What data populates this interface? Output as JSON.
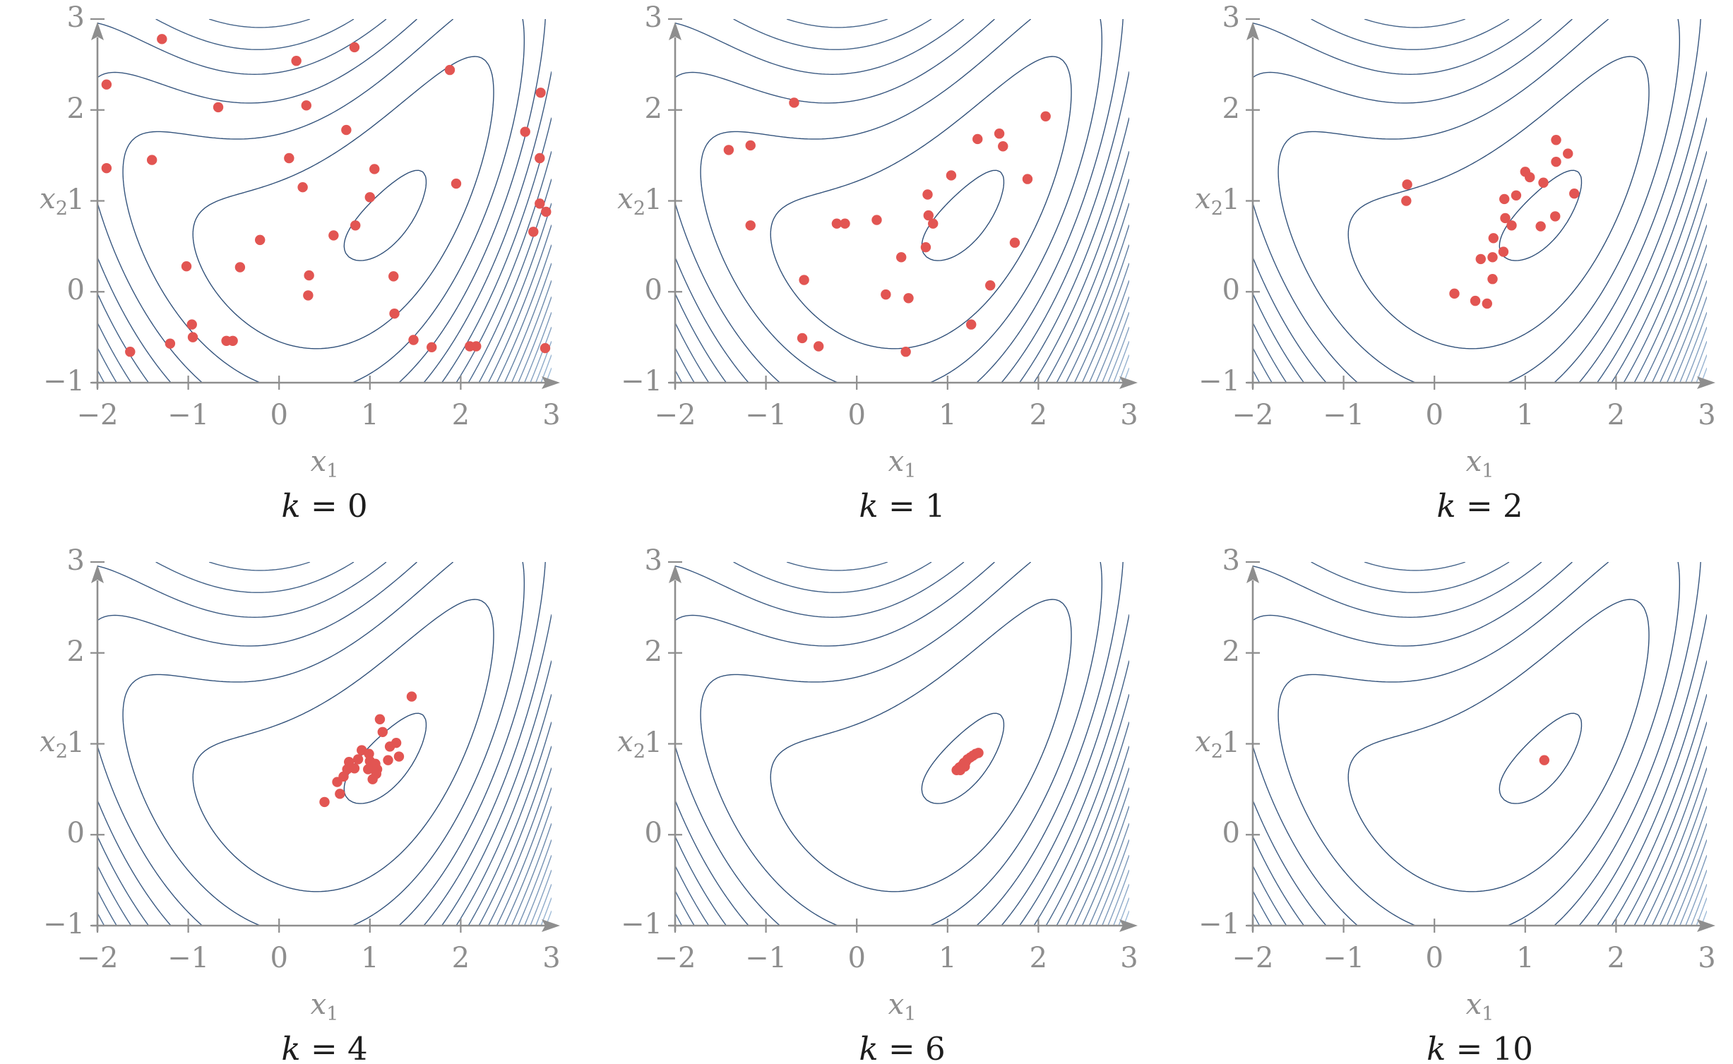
{
  "figure": {
    "background": "#ffffff",
    "rows": 2,
    "cols": 3
  },
  "styles": {
    "contour_color_dark": "#2f4f78",
    "contour_color_light": "#a9c4e0",
    "point_color": "#e25552",
    "axis_color": "#8e8e8e",
    "tick_label_color": "#8e8e8e",
    "title_color": "#1d1d1d"
  },
  "axes": {
    "xlim": [
      -2,
      3
    ],
    "ylim": [
      -1,
      3
    ],
    "x_ticks": [
      "−2",
      "−1",
      "0",
      "1",
      "2",
      "3"
    ],
    "x_tick_values": [
      -2,
      -1,
      0,
      1,
      2,
      3
    ],
    "y_ticks": [
      "3",
      "2",
      "1",
      "0",
      "−1"
    ],
    "y_tick_values": [
      3,
      2,
      1,
      0,
      -1
    ],
    "xlabel_base": "x",
    "xlabel_sub": "1",
    "ylabel_base": "x",
    "ylabel_sub": "2"
  },
  "contour": {
    "function": "f(x1,x2) = (1 - x1)^2 + (1 - x2)^2 + 0.5*(2*x2 - x1^2)^2",
    "levels_min": 0.45,
    "levels_step": 3.55,
    "levels_count": 20,
    "grid": "lines only, no fill"
  },
  "chart_data": [
    {
      "type": "scatter",
      "title": "k = 0",
      "title_var": "k",
      "title_eq": " = 0",
      "xlabel": "x1",
      "ylabel": "x2",
      "xlim": [
        -2,
        3
      ],
      "ylim": [
        -1,
        3
      ],
      "points": [
        [
          -1.29,
          2.78
        ],
        [
          0.83,
          2.69
        ],
        [
          0.19,
          2.54
        ],
        [
          -1.9,
          2.28
        ],
        [
          -0.67,
          2.03
        ],
        [
          0.3,
          2.05
        ],
        [
          1.88,
          2.44
        ],
        [
          2.88,
          2.19
        ],
        [
          0.74,
          1.78
        ],
        [
          2.71,
          1.76
        ],
        [
          -1.4,
          1.45
        ],
        [
          -1.9,
          1.36
        ],
        [
          0.11,
          1.47
        ],
        [
          1.05,
          1.35
        ],
        [
          2.87,
          1.47
        ],
        [
          0.26,
          1.15
        ],
        [
          1.0,
          1.04
        ],
        [
          1.95,
          1.19
        ],
        [
          2.87,
          0.97
        ],
        [
          2.94,
          0.88
        ],
        [
          0.84,
          0.73
        ],
        [
          0.6,
          0.62
        ],
        [
          2.8,
          0.66
        ],
        [
          -0.21,
          0.57
        ],
        [
          0.33,
          0.18
        ],
        [
          1.26,
          0.17
        ],
        [
          -1.02,
          0.28
        ],
        [
          -0.43,
          0.27
        ],
        [
          0.32,
          -0.04
        ],
        [
          1.27,
          -0.24
        ],
        [
          -0.96,
          -0.36
        ],
        [
          -0.95,
          -0.5
        ],
        [
          -0.58,
          -0.54
        ],
        [
          -0.51,
          -0.54
        ],
        [
          -1.2,
          -0.57
        ],
        [
          -1.64,
          -0.66
        ],
        [
          1.48,
          -0.53
        ],
        [
          1.68,
          -0.61
        ],
        [
          2.1,
          -0.6
        ],
        [
          2.17,
          -0.6
        ],
        [
          2.93,
          -0.62
        ]
      ]
    },
    {
      "type": "scatter",
      "title": "k = 1",
      "title_var": "k",
      "title_eq": " = 1",
      "xlabel": "x1",
      "ylabel": "x2",
      "xlim": [
        -2,
        3
      ],
      "ylim": [
        -1,
        3
      ],
      "points": [
        [
          -0.69,
          2.08
        ],
        [
          2.08,
          1.93
        ],
        [
          1.33,
          1.68
        ],
        [
          1.57,
          1.74
        ],
        [
          1.61,
          1.6
        ],
        [
          -1.41,
          1.56
        ],
        [
          -1.17,
          1.61
        ],
        [
          1.04,
          1.28
        ],
        [
          1.88,
          1.24
        ],
        [
          0.78,
          1.07
        ],
        [
          0.79,
          0.84
        ],
        [
          0.84,
          0.75
        ],
        [
          0.22,
          0.79
        ],
        [
          -0.22,
          0.75
        ],
        [
          -0.13,
          0.75
        ],
        [
          -1.17,
          0.73
        ],
        [
          0.76,
          0.49
        ],
        [
          0.49,
          0.38
        ],
        [
          1.74,
          0.54
        ],
        [
          -0.58,
          0.13
        ],
        [
          0.32,
          -0.03
        ],
        [
          0.57,
          -0.07
        ],
        [
          1.47,
          0.07
        ],
        [
          1.26,
          -0.36
        ],
        [
          -0.6,
          -0.51
        ],
        [
          -0.42,
          -0.6
        ],
        [
          0.54,
          -0.66
        ]
      ]
    },
    {
      "type": "scatter",
      "title": "k = 2",
      "title_var": "k",
      "title_eq": " = 2",
      "xlabel": "x1",
      "ylabel": "x2",
      "xlim": [
        -2,
        3
      ],
      "ylim": [
        -1,
        3
      ],
      "points": [
        [
          1.34,
          1.67
        ],
        [
          1.47,
          1.52
        ],
        [
          1.34,
          1.43
        ],
        [
          1.0,
          1.32
        ],
        [
          1.05,
          1.26
        ],
        [
          1.2,
          1.2
        ],
        [
          -0.3,
          1.18
        ],
        [
          0.77,
          1.02
        ],
        [
          0.9,
          1.06
        ],
        [
          -0.31,
          1.0
        ],
        [
          1.54,
          1.08
        ],
        [
          0.78,
          0.81
        ],
        [
          0.85,
          0.73
        ],
        [
          1.33,
          0.83
        ],
        [
          1.17,
          0.72
        ],
        [
          0.65,
          0.59
        ],
        [
          0.76,
          0.44
        ],
        [
          0.51,
          0.36
        ],
        [
          0.64,
          0.38
        ],
        [
          0.64,
          0.14
        ],
        [
          0.22,
          -0.02
        ],
        [
          0.45,
          -0.1
        ],
        [
          0.58,
          -0.13
        ]
      ]
    },
    {
      "type": "scatter",
      "title": "k = 4",
      "title_var": "k",
      "title_eq": " = 4",
      "xlabel": "x1",
      "ylabel": "x2",
      "xlim": [
        -2,
        3
      ],
      "ylim": [
        -1,
        3
      ],
      "points": [
        [
          1.46,
          1.52
        ],
        [
          1.11,
          1.27
        ],
        [
          1.14,
          1.13
        ],
        [
          1.22,
          0.97
        ],
        [
          1.29,
          1.01
        ],
        [
          0.91,
          0.93
        ],
        [
          0.87,
          0.83
        ],
        [
          0.99,
          0.89
        ],
        [
          1.0,
          0.81
        ],
        [
          0.77,
          0.8
        ],
        [
          1.06,
          0.78
        ],
        [
          1.2,
          0.82
        ],
        [
          1.32,
          0.86
        ],
        [
          0.75,
          0.72
        ],
        [
          0.83,
          0.73
        ],
        [
          0.98,
          0.72
        ],
        [
          1.08,
          0.72
        ],
        [
          1.07,
          0.67
        ],
        [
          0.71,
          0.64
        ],
        [
          1.03,
          0.61
        ],
        [
          0.64,
          0.58
        ],
        [
          0.67,
          0.45
        ],
        [
          0.5,
          0.36
        ]
      ]
    },
    {
      "type": "scatter",
      "title": "k = 6",
      "title_var": "k",
      "title_eq": " = 6",
      "xlabel": "x1",
      "ylabel": "x2",
      "xlim": [
        -2,
        3
      ],
      "ylim": [
        -1,
        3
      ],
      "points": [
        [
          1.1,
          0.71
        ],
        [
          1.13,
          0.74
        ],
        [
          1.14,
          0.71
        ],
        [
          1.16,
          0.76
        ],
        [
          1.18,
          0.79
        ],
        [
          1.19,
          0.75
        ],
        [
          1.2,
          0.8
        ],
        [
          1.22,
          0.83
        ],
        [
          1.25,
          0.85
        ],
        [
          1.28,
          0.87
        ],
        [
          1.31,
          0.89
        ],
        [
          1.34,
          0.9
        ]
      ]
    },
    {
      "type": "scatter",
      "title": "k = 10",
      "title_var": "k",
      "title_eq": " = 10",
      "xlabel": "x1",
      "ylabel": "x2",
      "xlim": [
        -2,
        3
      ],
      "ylim": [
        -1,
        3
      ],
      "points": [
        [
          1.21,
          0.82
        ]
      ]
    }
  ]
}
